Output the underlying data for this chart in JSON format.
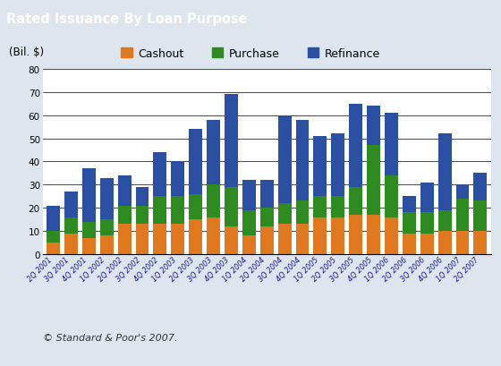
{
  "title": "Rated Issuance By Loan Purpose",
  "title_bg_color": "#6b8fa3",
  "title_text_color": "#ffffff",
  "ylabel": "(Bil. $)",
  "copyright": "© Standard & Poor's 2007.",
  "legend_labels": [
    "Cashout",
    "Purchase",
    "Refinance"
  ],
  "legend_colors": [
    "#e07820",
    "#2e8b20",
    "#2b4fa3"
  ],
  "categories": [
    "2Q 2001",
    "3Q 2001",
    "4Q 2001",
    "1Q 2002",
    "2Q 2002",
    "3Q 2002",
    "4Q 2002",
    "1Q 2003",
    "2Q 2003",
    "3Q 2003",
    "4Q 2003",
    "1Q 2004",
    "2Q 2004",
    "3Q 2004",
    "4Q 2004",
    "1Q 2005",
    "2Q 2005",
    "3Q 2005",
    "4Q 2005",
    "1Q 2006",
    "2Q 2006",
    "3Q 2006",
    "4Q 2006",
    "1Q 2007",
    "2Q 2007"
  ],
  "cashout": [
    5,
    9,
    7,
    8,
    13,
    13,
    13,
    13,
    15,
    16,
    12,
    8,
    12,
    13,
    13,
    16,
    16,
    17,
    17,
    16,
    9,
    9,
    10,
    10,
    10
  ],
  "purchase": [
    5,
    7,
    7,
    7,
    8,
    8,
    12,
    12,
    11,
    14,
    17,
    11,
    8,
    9,
    10,
    9,
    9,
    12,
    30,
    18,
    9,
    9,
    9,
    14,
    13
  ],
  "refinance": [
    11,
    11,
    23,
    18,
    13,
    8,
    19,
    15,
    28,
    28,
    40,
    13,
    12,
    38,
    35,
    26,
    27,
    36,
    17,
    27,
    7,
    13,
    33,
    6,
    12
  ],
  "ylim": [
    0,
    80
  ],
  "yticks": [
    0,
    10,
    20,
    30,
    40,
    50,
    60,
    70,
    80
  ],
  "chart_bg": "#ffffff",
  "outer_bg": "#dde6ef"
}
